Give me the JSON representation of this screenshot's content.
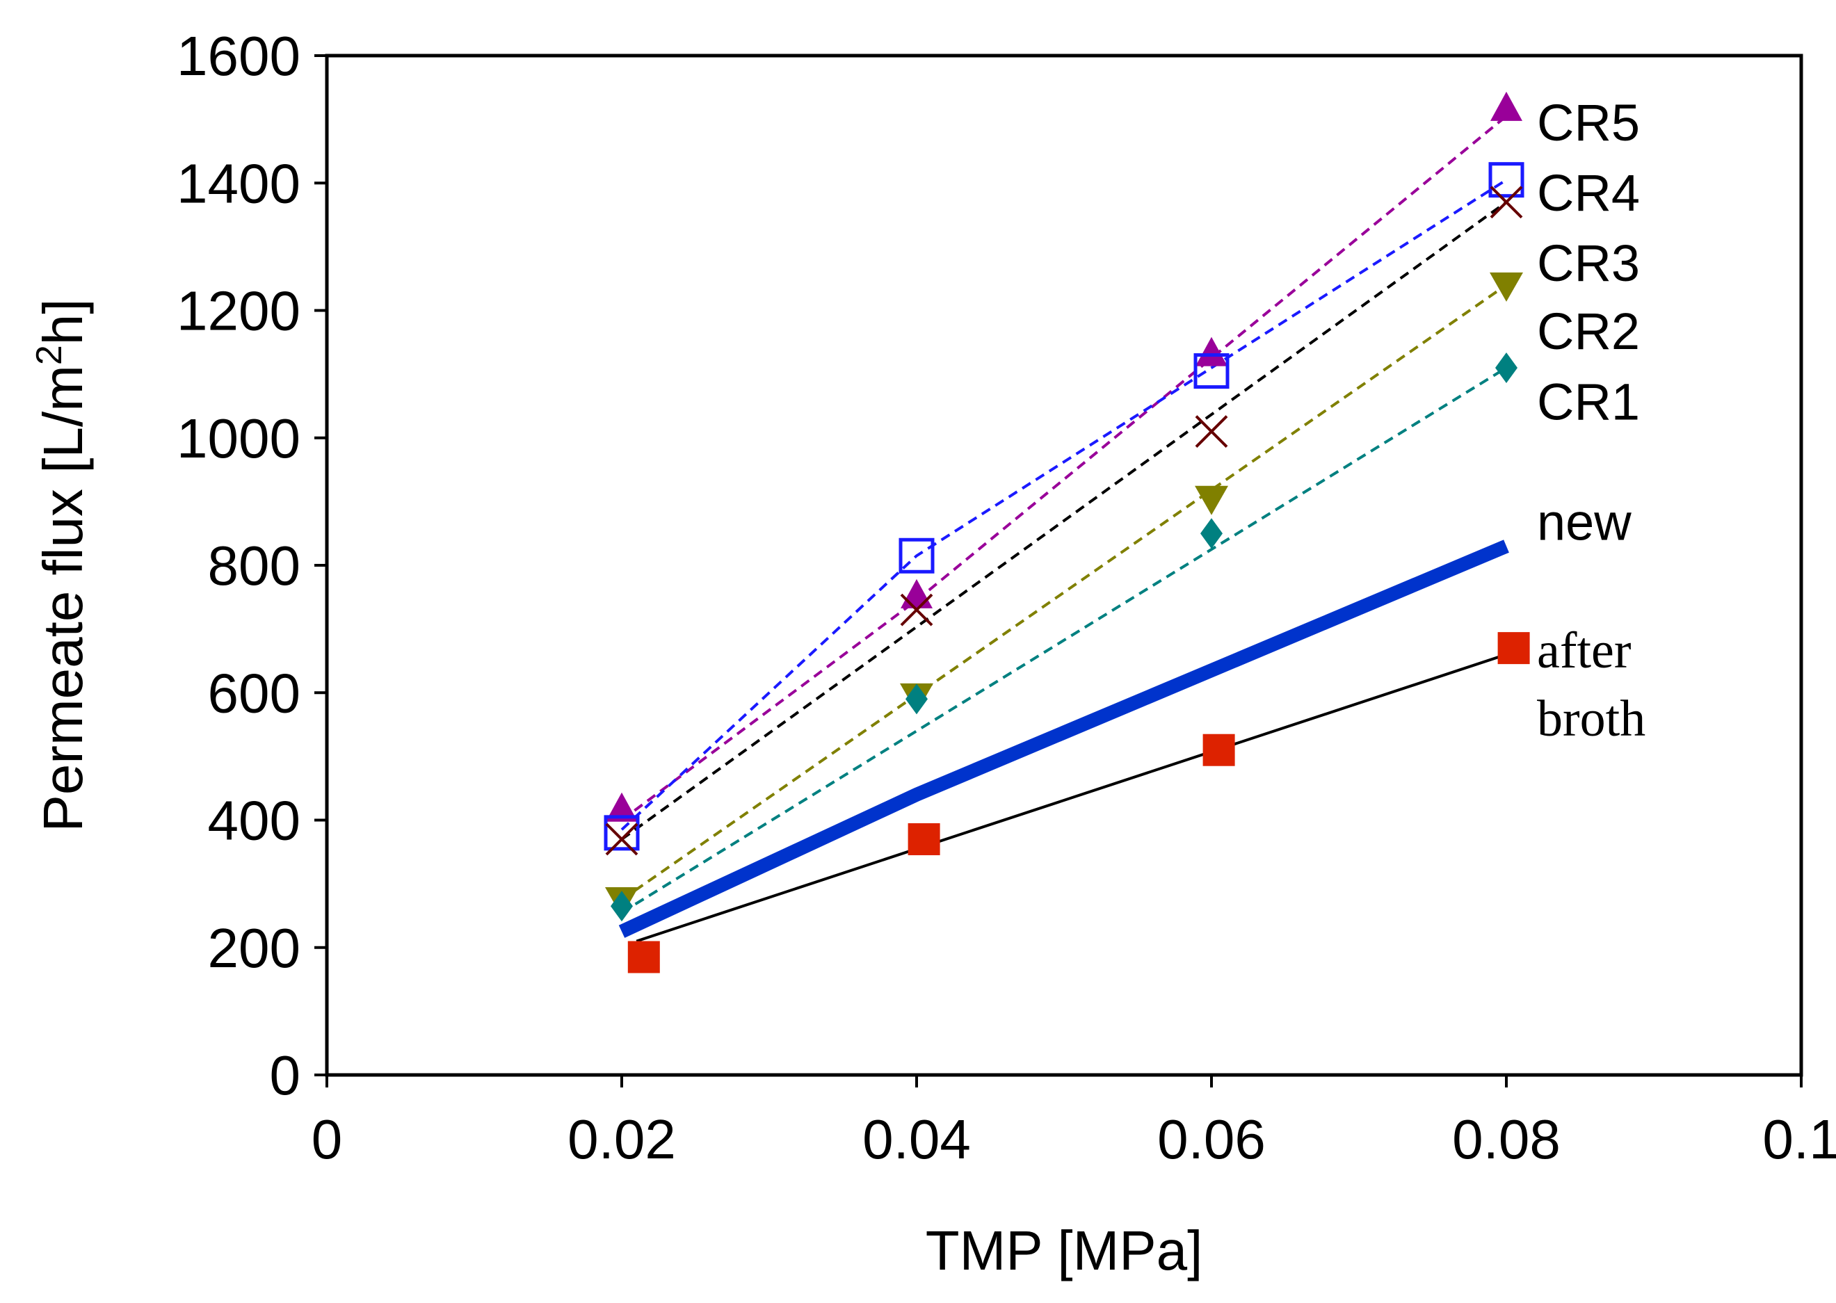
{
  "chart_data": {
    "type": "line",
    "title": "",
    "xlabel": "TMP [MPa]",
    "ylabel_parts": {
      "before": "Permeate flux [L/m",
      "sup": "2",
      "after": "h]"
    },
    "xlim": [
      0,
      0.1
    ],
    "ylim": [
      0,
      1600
    ],
    "x_ticks": [
      0,
      0.02,
      0.04,
      0.06,
      0.08,
      0.1
    ],
    "x_tick_labels": [
      "0",
      "0.02",
      "0.04",
      "0.06",
      "0.08",
      "0.1"
    ],
    "y_ticks": [
      0,
      200,
      400,
      600,
      800,
      1000,
      1200,
      1400,
      1600
    ],
    "y_tick_labels": [
      "0",
      "200",
      "400",
      "600",
      "800",
      "1000",
      "1200",
      "1400",
      "1600"
    ],
    "grid": false,
    "series": [
      {
        "name": "CR5",
        "label": "CR5",
        "label_font": "sans",
        "marker": "triangle-up",
        "color": "#990099",
        "x": [
          0.02,
          0.04,
          0.06,
          0.08
        ],
        "y": [
          415,
          750,
          1130,
          1515
        ],
        "line": {
          "style": "dashed",
          "x": [
            0.02,
            0.04,
            0.06,
            0.08
          ],
          "y": [
            400,
            745,
            1125,
            1505
          ]
        }
      },
      {
        "name": "CR4",
        "label": "CR4",
        "label_font": "sans",
        "marker": "square-open",
        "color": "#1a1aff",
        "x": [
          0.02,
          0.04,
          0.06,
          0.08
        ],
        "y": [
          380,
          815,
          1105,
          1405
        ],
        "line": {
          "style": "dashed",
          "x": [
            0.02,
            0.04,
            0.06,
            0.08
          ],
          "y": [
            385,
            815,
            1110,
            1405
          ]
        }
      },
      {
        "name": "CR3",
        "label": "CR3",
        "label_font": "sans",
        "marker": "x",
        "color": "#660000",
        "line_color": "#000000",
        "x": [
          0.02,
          0.04,
          0.06,
          0.08
        ],
        "y": [
          370,
          730,
          1010,
          1370
        ],
        "line": {
          "style": "dashed",
          "x": [
            0.02,
            0.08
          ],
          "y": [
            370,
            1370
          ]
        }
      },
      {
        "name": "CR2",
        "label": "CR2",
        "label_font": "sans",
        "marker": "triangle-down",
        "color": "#808000",
        "x": [
          0.02,
          0.04,
          0.06,
          0.08
        ],
        "y": [
          275,
          595,
          905,
          1240
        ],
        "line": {
          "style": "dashed",
          "x": [
            0.02,
            0.08
          ],
          "y": [
            275,
            1240
          ]
        }
      },
      {
        "name": "CR1",
        "label": "CR1",
        "label_font": "sans",
        "marker": "diamond",
        "color": "#008080",
        "x": [
          0.02,
          0.04,
          0.06,
          0.08
        ],
        "y": [
          265,
          590,
          850,
          1110
        ],
        "line": {
          "style": "dashed",
          "x": [
            0.02,
            0.08
          ],
          "y": [
            255,
            1110
          ]
        }
      },
      {
        "name": "new",
        "label": "new",
        "label_font": "sans",
        "marker": "none",
        "color": "#0033cc",
        "x": [],
        "y": [],
        "line": {
          "style": "thick",
          "x": [
            0.02,
            0.04,
            0.08
          ],
          "y": [
            225,
            440,
            830
          ]
        }
      },
      {
        "name": "after broth",
        "label_lines": [
          "after",
          "broth"
        ],
        "label_font": "serif",
        "marker": "square",
        "color": "#dd2200",
        "line_color": "#000000",
        "x": [
          0.0215,
          0.0405,
          0.0605,
          0.0805
        ],
        "y": [
          185,
          370,
          510,
          670
        ],
        "line": {
          "style": "solid",
          "x": [
            0.021,
            0.08
          ],
          "y": [
            210,
            660
          ]
        }
      }
    ]
  }
}
